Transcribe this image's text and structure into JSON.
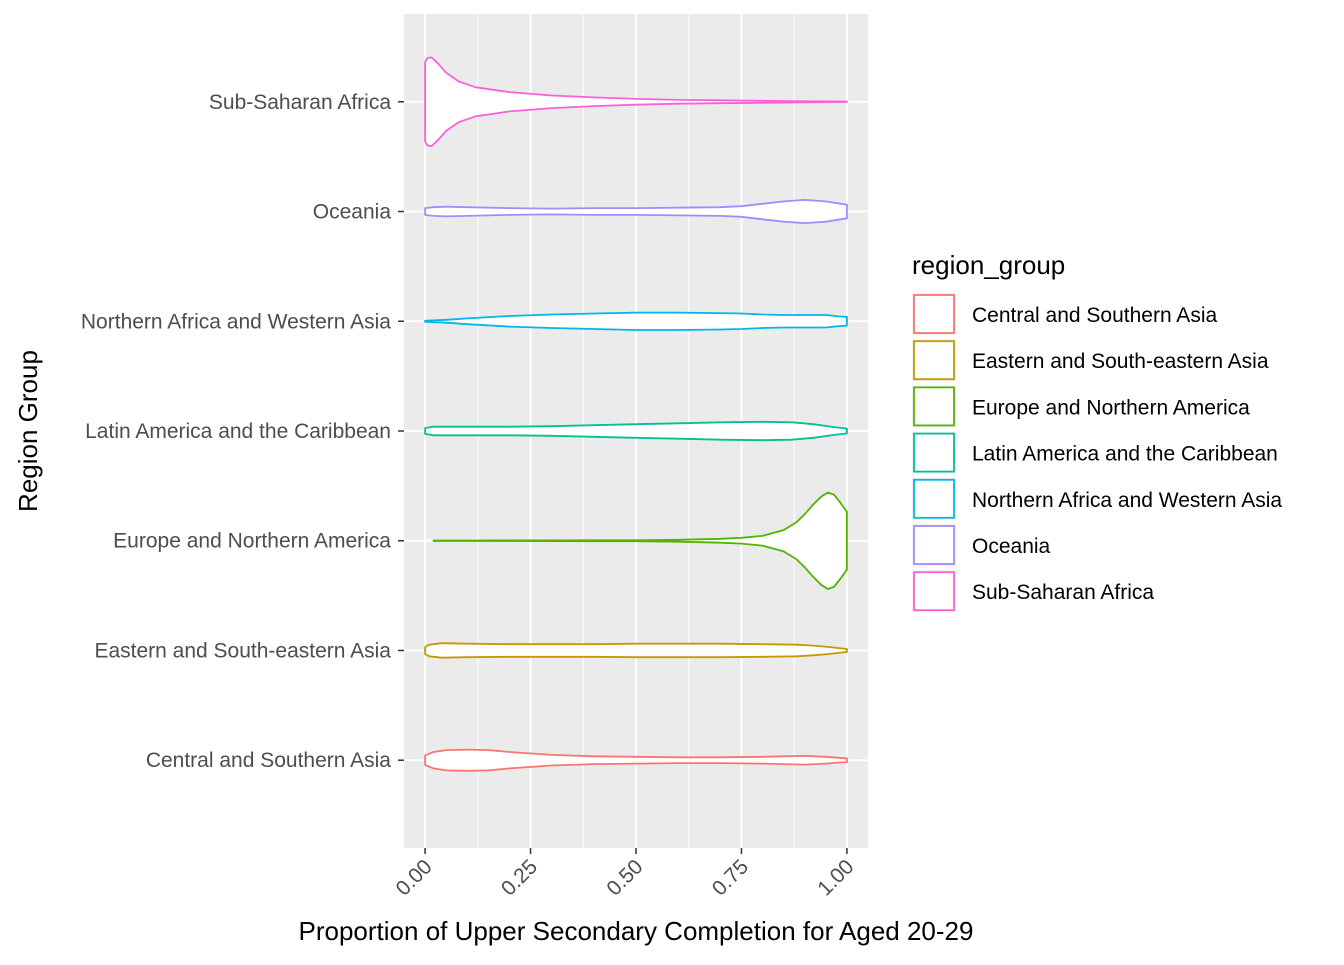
{
  "chart_data": {
    "type": "violin",
    "orientation": "horizontal",
    "xlabel": "Proportion of Upper Secondary Completion for Aged 20-29",
    "ylabel": "Region Group",
    "xlim": [
      -0.05,
      1.05
    ],
    "x_ticks": [
      0.0,
      0.25,
      0.5,
      0.75,
      1.0
    ],
    "x_tick_labels": [
      "0.00",
      "0.25",
      "0.50",
      "0.75",
      "1.00"
    ],
    "x_tick_label_rotation": -45,
    "grid": true,
    "panel_background": "#ebebeb",
    "legend": {
      "title": "region_group",
      "position": "right",
      "entries": [
        "Central and Southern Asia",
        "Eastern and South-eastern Asia",
        "Europe and Northern America",
        "Latin America and the Caribbean",
        "Northern Africa and Western Asia",
        "Oceania",
        "Sub-Saharan Africa"
      ]
    },
    "categories": [
      "Central and Southern Asia",
      "Eastern and South-eastern Asia",
      "Europe and Northern America",
      "Latin America and the Caribbean",
      "Northern Africa and Western Asia",
      "Oceania",
      "Sub-Saharan Africa"
    ],
    "series": [
      {
        "name": "Central and Southern Asia",
        "color": "#F8766D",
        "range": [
          0.0,
          1.0
        ],
        "profile": [
          [
            0.0,
            0.1
          ],
          [
            0.02,
            0.17
          ],
          [
            0.05,
            0.21
          ],
          [
            0.1,
            0.22
          ],
          [
            0.15,
            0.21
          ],
          [
            0.2,
            0.17
          ],
          [
            0.3,
            0.11
          ],
          [
            0.4,
            0.08
          ],
          [
            0.5,
            0.07
          ],
          [
            0.6,
            0.06
          ],
          [
            0.7,
            0.06
          ],
          [
            0.8,
            0.07
          ],
          [
            0.85,
            0.08
          ],
          [
            0.9,
            0.09
          ],
          [
            0.95,
            0.07
          ],
          [
            0.98,
            0.05
          ],
          [
            1.0,
            0.04
          ]
        ]
      },
      {
        "name": "Eastern and South-eastern Asia",
        "color": "#C49A00",
        "range": [
          0.0,
          1.0
        ],
        "profile": [
          [
            0.0,
            0.07
          ],
          [
            0.01,
            0.12
          ],
          [
            0.04,
            0.15
          ],
          [
            0.1,
            0.14
          ],
          [
            0.2,
            0.13
          ],
          [
            0.3,
            0.13
          ],
          [
            0.4,
            0.13
          ],
          [
            0.5,
            0.14
          ],
          [
            0.6,
            0.14
          ],
          [
            0.7,
            0.14
          ],
          [
            0.8,
            0.13
          ],
          [
            0.88,
            0.12
          ],
          [
            0.92,
            0.1
          ],
          [
            0.96,
            0.07
          ],
          [
            1.0,
            0.03
          ]
        ]
      },
      {
        "name": "Europe and Northern America",
        "color": "#53B400",
        "range": [
          0.02,
          1.0
        ],
        "profile": [
          [
            0.02,
            0.005
          ],
          [
            0.1,
            0.005
          ],
          [
            0.2,
            0.006
          ],
          [
            0.3,
            0.007
          ],
          [
            0.4,
            0.01
          ],
          [
            0.5,
            0.01
          ],
          [
            0.6,
            0.02
          ],
          [
            0.7,
            0.04
          ],
          [
            0.75,
            0.06
          ],
          [
            0.8,
            0.1
          ],
          [
            0.85,
            0.22
          ],
          [
            0.88,
            0.38
          ],
          [
            0.9,
            0.55
          ],
          [
            0.92,
            0.75
          ],
          [
            0.94,
            0.92
          ],
          [
            0.955,
            1.0
          ],
          [
            0.97,
            0.95
          ],
          [
            0.985,
            0.78
          ],
          [
            1.0,
            0.6
          ]
        ]
      },
      {
        "name": "Latin America and the Caribbean",
        "color": "#00C094",
        "range": [
          0.0,
          1.0
        ],
        "profile": [
          [
            0.0,
            0.06
          ],
          [
            0.02,
            0.09
          ],
          [
            0.1,
            0.09
          ],
          [
            0.2,
            0.09
          ],
          [
            0.3,
            0.1
          ],
          [
            0.4,
            0.12
          ],
          [
            0.5,
            0.14
          ],
          [
            0.6,
            0.16
          ],
          [
            0.7,
            0.18
          ],
          [
            0.8,
            0.19
          ],
          [
            0.87,
            0.18
          ],
          [
            0.92,
            0.14
          ],
          [
            0.97,
            0.08
          ],
          [
            1.0,
            0.05
          ]
        ]
      },
      {
        "name": "Northern Africa and Western Asia",
        "color": "#00B6EB",
        "range": [
          0.0,
          1.0
        ],
        "profile": [
          [
            0.0,
            0.01
          ],
          [
            0.05,
            0.03
          ],
          [
            0.1,
            0.06
          ],
          [
            0.2,
            0.11
          ],
          [
            0.3,
            0.14
          ],
          [
            0.4,
            0.16
          ],
          [
            0.5,
            0.18
          ],
          [
            0.6,
            0.18
          ],
          [
            0.7,
            0.17
          ],
          [
            0.75,
            0.16
          ],
          [
            0.8,
            0.14
          ],
          [
            0.85,
            0.13
          ],
          [
            0.9,
            0.13
          ],
          [
            0.95,
            0.13
          ],
          [
            0.98,
            0.1
          ],
          [
            1.0,
            0.09
          ]
        ]
      },
      {
        "name": "Oceania",
        "color": "#A58AFF",
        "range": [
          0.0,
          1.0
        ],
        "profile": [
          [
            0.0,
            0.07
          ],
          [
            0.02,
            0.09
          ],
          [
            0.05,
            0.1
          ],
          [
            0.1,
            0.09
          ],
          [
            0.2,
            0.07
          ],
          [
            0.3,
            0.06
          ],
          [
            0.4,
            0.07
          ],
          [
            0.5,
            0.07
          ],
          [
            0.6,
            0.08
          ],
          [
            0.7,
            0.09
          ],
          [
            0.75,
            0.11
          ],
          [
            0.8,
            0.16
          ],
          [
            0.85,
            0.21
          ],
          [
            0.9,
            0.24
          ],
          [
            0.95,
            0.21
          ],
          [
            1.0,
            0.14
          ]
        ]
      },
      {
        "name": "Sub-Saharan Africa",
        "color": "#FB61D7",
        "range": [
          0.0,
          1.0
        ],
        "profile": [
          [
            0.0,
            0.82
          ],
          [
            0.005,
            0.9
          ],
          [
            0.015,
            0.92
          ],
          [
            0.03,
            0.8
          ],
          [
            0.05,
            0.6
          ],
          [
            0.08,
            0.42
          ],
          [
            0.12,
            0.3
          ],
          [
            0.2,
            0.2
          ],
          [
            0.3,
            0.13
          ],
          [
            0.4,
            0.09
          ],
          [
            0.5,
            0.06
          ],
          [
            0.6,
            0.04
          ],
          [
            0.7,
            0.03
          ],
          [
            0.8,
            0.02
          ],
          [
            0.9,
            0.01
          ],
          [
            1.0,
            0.005
          ]
        ]
      }
    ]
  }
}
